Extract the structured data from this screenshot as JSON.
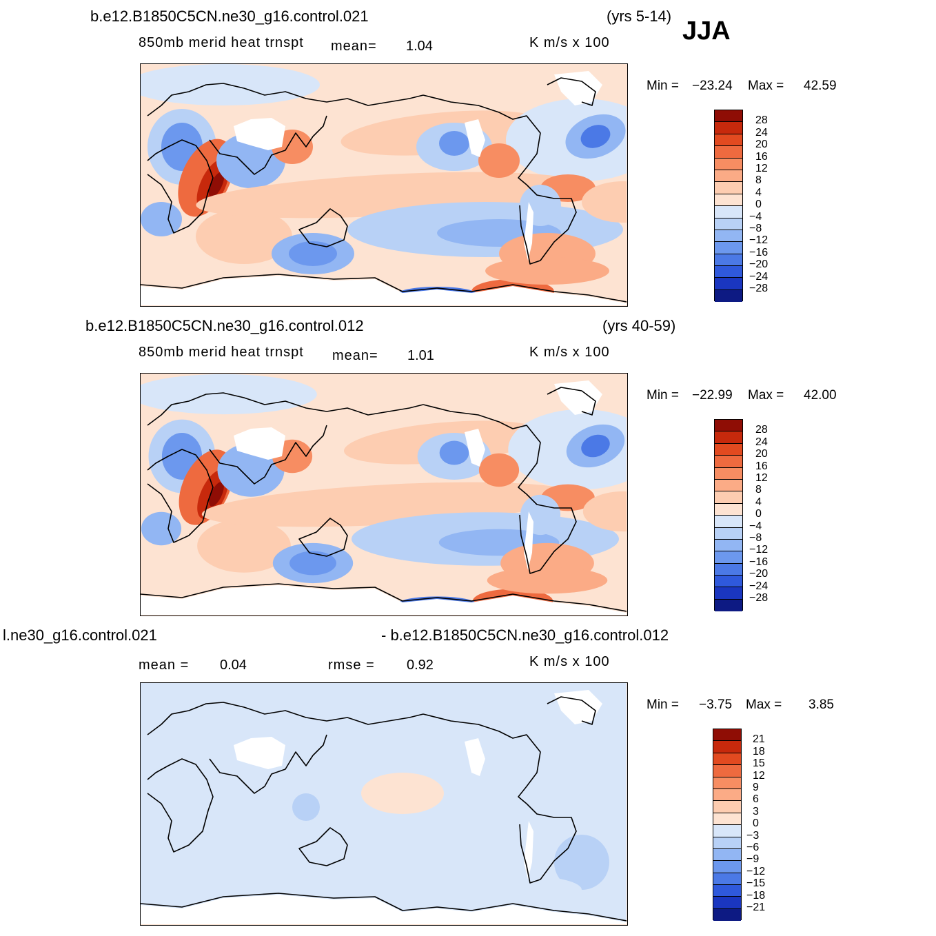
{
  "season": "JJA",
  "colors": {
    "pos": [
      "#fde3d2",
      "#fdcdb1",
      "#fbab86",
      "#f78d62",
      "#ee6a3f",
      "#e24a20",
      "#c7290c",
      "#8f0d05"
    ],
    "neg": [
      "#d8e6f9",
      "#b8d1f6",
      "#92b6f3",
      "#6c98ee",
      "#4b79e6",
      "#2f59dc",
      "#1a36c0",
      "#0d1a83"
    ],
    "coast": "#000000",
    "land_missing": "#ffffff"
  },
  "panels": [
    {
      "case": "b.e12.B1850C5CN.ne30_g16.control.021",
      "years": "(yrs 5-14)",
      "variable": "850mb  merid  heat  trnspt",
      "stat1_label": "mean=",
      "stat1_value": "1.04",
      "units": "K  m/s  x  100",
      "min_label": "Min  =",
      "min_value": "−23.24",
      "max_label": "Max  =",
      "max_value": "42.59",
      "levels": [
        "28",
        "24",
        "20",
        "16",
        "12",
        "8",
        "4",
        "0",
        "−4",
        "−8",
        "−12",
        "−16",
        "−20",
        "−24",
        "−28"
      ]
    },
    {
      "case": "b.e12.B1850C5CN.ne30_g16.control.012",
      "years": "(yrs 40-59)",
      "variable": "850mb  merid  heat  trnspt",
      "stat1_label": "mean=",
      "stat1_value": "1.01",
      "units": "K  m/s  x  100",
      "min_label": "Min  =",
      "min_value": "−22.99",
      "max_label": "Max  =",
      "max_value": "42.00",
      "levels": [
        "28",
        "24",
        "20",
        "16",
        "12",
        "8",
        "4",
        "0",
        "−4",
        "−8",
        "−12",
        "−16",
        "−20",
        "−24",
        "−28"
      ]
    },
    {
      "case": "l.ne30_g16.control.021",
      "case2": "- b.e12.B1850C5CN.ne30_g16.control.012",
      "stat1_label": "mean  =",
      "stat1_value": "0.04",
      "stat2_label": "rmse  =",
      "stat2_value": "0.92",
      "units": "K  m/s  x  100",
      "min_label": "Min  =",
      "min_value": "−3.75",
      "max_label": "Max  =",
      "max_value": "3.85",
      "levels": [
        "21",
        "18",
        "15",
        "12",
        "9",
        "6",
        "3",
        "0",
        "−3",
        "−6",
        "−9",
        "−12",
        "−15",
        "−18",
        "−21"
      ]
    }
  ],
  "chart_data": [
    {
      "type": "heatmap",
      "title": "b.e12.B1850C5CN.ne30_g16.control.021 (yrs 5-14)",
      "subtitle": "850mb merid heat trnspt",
      "mean": 1.04,
      "min": -23.24,
      "max": 42.59,
      "units": "K m/s x 100",
      "contour_levels": [
        -28,
        -24,
        -20,
        -16,
        -12,
        -8,
        -4,
        0,
        4,
        8,
        12,
        16,
        20,
        24,
        28
      ]
    },
    {
      "type": "heatmap",
      "title": "b.e12.B1850C5CN.ne30_g16.control.012 (yrs 40-59)",
      "subtitle": "850mb merid heat trnspt",
      "mean": 1.01,
      "min": -22.99,
      "max": 42.0,
      "units": "K m/s x 100",
      "contour_levels": [
        -28,
        -24,
        -20,
        -16,
        -12,
        -8,
        -4,
        0,
        4,
        8,
        12,
        16,
        20,
        24,
        28
      ]
    },
    {
      "type": "heatmap",
      "title": "l.ne30_g16.control.021 - b.e12.B1850C5CN.ne30_g16.control.012",
      "mean": 0.04,
      "rmse": 0.92,
      "min": -3.75,
      "max": 3.85,
      "units": "K m/s x 100",
      "contour_levels": [
        -21,
        -18,
        -15,
        -12,
        -9,
        -6,
        -3,
        0,
        3,
        6,
        9,
        12,
        15,
        18,
        21
      ]
    }
  ]
}
